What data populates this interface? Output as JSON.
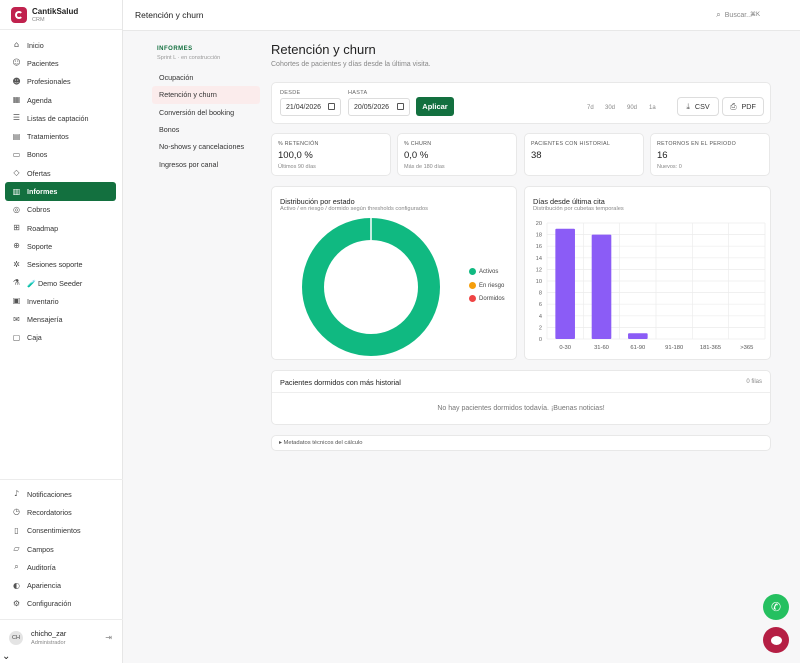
{
  "brand": {
    "name": "CantikSalud",
    "sub": "CRM"
  },
  "topbar": {
    "title": "Retención y churn",
    "search_placeholder": "Buscar...",
    "search_shortcut": "⌘K"
  },
  "sidebar": {
    "items": [
      {
        "label": "Inicio",
        "icon": "home-icon"
      },
      {
        "label": "Pacientes",
        "icon": "users-icon"
      },
      {
        "label": "Profesionales",
        "icon": "user-group-icon"
      },
      {
        "label": "Agenda",
        "icon": "calendar-icon"
      },
      {
        "label": "Listas de captación",
        "icon": "list-icon"
      },
      {
        "label": "Tratamientos",
        "icon": "clipboard-icon"
      },
      {
        "label": "Bonos",
        "icon": "ticket-icon"
      },
      {
        "label": "Ofertas",
        "icon": "tag-icon"
      },
      {
        "label": "Informes",
        "icon": "bar-chart-icon",
        "active": true
      },
      {
        "label": "Cobros",
        "icon": "coin-icon"
      },
      {
        "label": "Roadmap",
        "icon": "map-icon"
      },
      {
        "label": "Soporte",
        "icon": "lifebuoy-icon"
      },
      {
        "label": "Sesiones soporte",
        "icon": "settings-cog-icon"
      },
      {
        "label": "🧪 Demo Seeder",
        "icon": "flask-icon"
      },
      {
        "label": "Inventario",
        "icon": "box-icon"
      },
      {
        "label": "Mensajería",
        "icon": "message-icon"
      },
      {
        "label": "Caja",
        "icon": "cash-register-icon"
      }
    ],
    "bottom_items": [
      {
        "label": "Notificaciones",
        "icon": "bell-icon"
      },
      {
        "label": "Recordatorios",
        "icon": "clock-icon"
      },
      {
        "label": "Consentimientos",
        "icon": "document-icon"
      },
      {
        "label": "Campos",
        "icon": "form-fields-icon"
      },
      {
        "label": "Auditoría",
        "icon": "audit-icon"
      },
      {
        "label": "Apariencia",
        "icon": "palette-icon"
      },
      {
        "label": "Configuración",
        "icon": "gear-icon"
      }
    ],
    "user": {
      "initials": "CH",
      "name": "chicho_zar",
      "role": "Administrador"
    }
  },
  "subnav": {
    "heading": "INFORMES",
    "subheading": "Sprint L · en construcción",
    "items": [
      "Ocupación",
      "Retención y churn",
      "Conversión del booking",
      "Bonos",
      "No-shows y cancelaciones",
      "Ingresos por canal"
    ],
    "active_index": 1
  },
  "page": {
    "title": "Retención y churn",
    "subtitle": "Cohortes de pacientes y días desde la última visita."
  },
  "filters": {
    "from_label": "DESDE",
    "from_value": "21/04/2026",
    "to_label": "HASTA",
    "to_value": "20/05/2026",
    "apply_label": "Aplicar",
    "quick_ranges": [
      "7d",
      "30d",
      "90d",
      "1a"
    ],
    "csv_label": "CSV",
    "pdf_label": "PDF"
  },
  "kpis": [
    {
      "label": "% RETENCIÓN",
      "value": "100,0 %",
      "sub": "Últimos 90 días"
    },
    {
      "label": "% CHURN",
      "value": "0,0 %",
      "sub": "Más de 180 días"
    },
    {
      "label": "PACIENTES CON HISTORIAL",
      "value": "38",
      "sub": ""
    },
    {
      "label": "RETORNOS EN EL PERIODO",
      "value": "16",
      "sub": "Nuevos: 0"
    }
  ],
  "colors": {
    "brand_green": "#13703f",
    "active": "#10b981",
    "at_risk": "#f59e0b",
    "dormant": "#ef4444",
    "bar": "#8b5cf6"
  },
  "chart_data": [
    {
      "type": "pie",
      "title": "Distribución por estado",
      "subtitle": "Activo / en riesgo / dormido según thresholds configurados",
      "categories": [
        "Activos",
        "En riesgo",
        "Dormidos"
      ],
      "values": [
        38,
        0,
        0
      ],
      "colors": [
        "#10b981",
        "#f59e0b",
        "#ef4444"
      ],
      "donut": true,
      "legend": "right"
    },
    {
      "type": "bar",
      "title": "Días desde última cita",
      "subtitle": "Distribución por cubetas temporales",
      "categories": [
        "0-30",
        "31-60",
        "61-90",
        "91-180",
        "181-365",
        ">365"
      ],
      "values": [
        19,
        18,
        1,
        0,
        0,
        0
      ],
      "ylim": [
        0,
        20
      ],
      "yticks": [
        0,
        2,
        4,
        6,
        8,
        10,
        12,
        14,
        16,
        18,
        20
      ],
      "grid": true,
      "color": "#8b5cf6"
    }
  ],
  "dormant_table": {
    "title": "Pacientes dormidos con más historial",
    "count": "0 filas",
    "empty": "No hay pacientes dormidos todavía. ¡Buenas noticias!"
  },
  "metadata": {
    "label": "▸ Metadatos técnicos del cálculo"
  }
}
